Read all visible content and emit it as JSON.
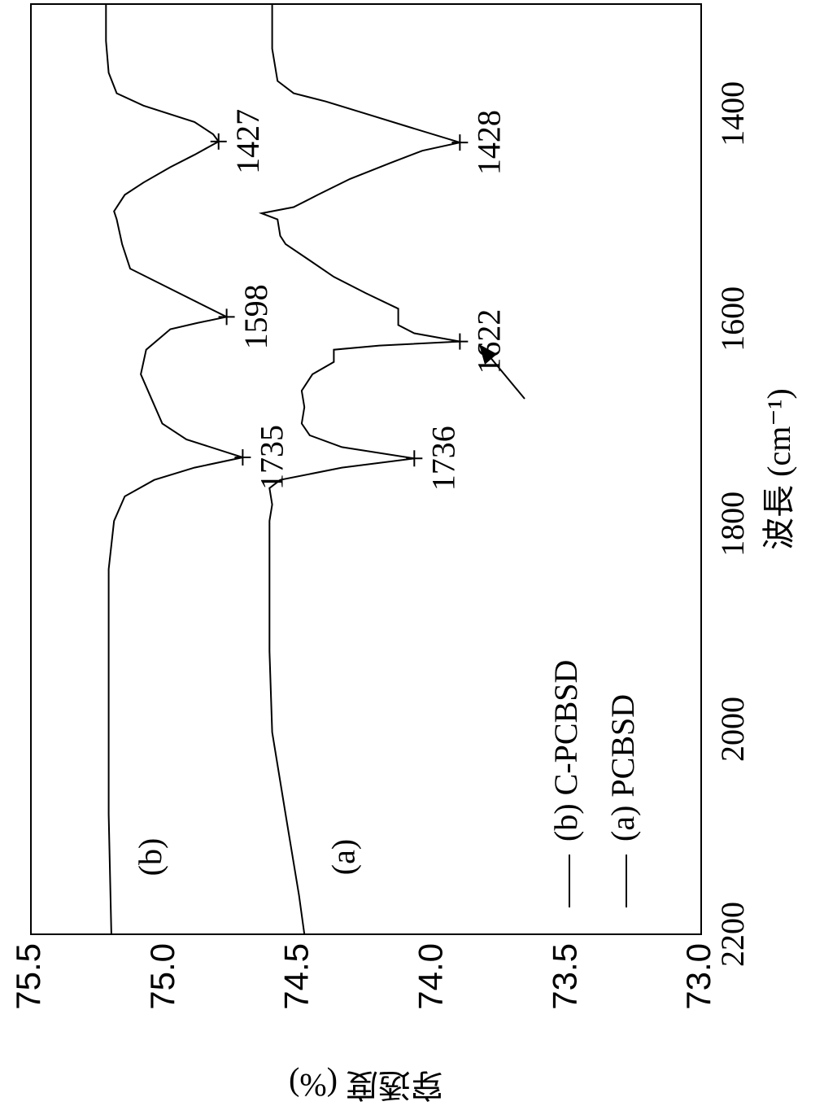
{
  "chart_data": {
    "type": "line",
    "xlabel": "波長 (cm⁻¹)",
    "ylabel": "穿透度 (%)",
    "xlim": [
      2200,
      1293
    ],
    "ylim": [
      73.0,
      75.5
    ],
    "xticks": [
      2200,
      2000,
      1800,
      1600,
      1400
    ],
    "yticks": [
      {
        "value": 73.0,
        "label": "73.0"
      },
      73.5,
      {
        "value": 74.0,
        "label": "74.0"
      },
      74.5,
      {
        "value": 75.0,
        "label": "75.0"
      },
      75.5
    ],
    "legend": "lower left",
    "series": [
      {
        "name": "(b) C-PCBSD",
        "label": "(b)",
        "color": "#000000",
        "x": [
          2200,
          2083,
          1844,
          1797,
          1773,
          1757,
          1745,
          1735,
          1717.5,
          1702,
          1678,
          1654,
          1630,
          1610,
          1604,
          1598,
          1551,
          1527,
          1503,
          1495,
          1479,
          1467,
          1452,
          1440,
          1427,
          1420,
          1408,
          1392,
          1380,
          1360,
          1329,
          1293
        ],
        "values": [
          75.2,
          75.21,
          75.21,
          75.19,
          75.15,
          75.04,
          74.89,
          74.71,
          74.92,
          75.01,
          75.05,
          75.09,
          75.07,
          74.98,
          74.88,
          74.77,
          75.13,
          75.16,
          75.18,
          75.19,
          75.15,
          75.08,
          74.98,
          74.89,
          74.8,
          74.82,
          74.89,
          75.08,
          75.18,
          75.21,
          75.22,
          75.22
        ]
      },
      {
        "name": "(a) PCBSD",
        "label": "(a)",
        "color": "#000000",
        "x": [
          2200,
          2162,
          2083,
          2003,
          1924,
          1844,
          1797,
          1781,
          1765,
          1757,
          1745,
          1736,
          1725,
          1713.5,
          1702,
          1686,
          1670,
          1654,
          1642,
          1630,
          1626,
          1622,
          1614,
          1606,
          1598,
          1590,
          1575,
          1559,
          1543,
          1527,
          1519,
          1503,
          1497,
          1491,
          1479,
          1463.5,
          1448,
          1436,
          1428,
          1412,
          1400,
          1388,
          1380,
          1368,
          1336.5,
          1293
        ],
        "values": [
          74.48,
          74.5,
          74.55,
          74.6,
          74.61,
          74.61,
          74.61,
          74.6,
          74.61,
          74.57,
          74.34,
          74.07,
          74.34,
          74.46,
          74.49,
          74.48,
          74.49,
          74.45,
          74.37,
          74.37,
          74.2,
          73.9,
          74.07,
          74.13,
          74.13,
          74.13,
          74.25,
          74.37,
          74.46,
          74.55,
          74.57,
          74.58,
          74.64,
          74.52,
          74.43,
          74.31,
          74.16,
          74.04,
          73.9,
          74.1,
          74.25,
          74.4,
          74.52,
          74.58,
          74.6,
          74.6
        ]
      }
    ],
    "annotations": [
      {
        "text": "1735",
        "x": 1735,
        "y": 74.71
      },
      {
        "text": "1598",
        "x": 1598,
        "y": 74.77
      },
      {
        "text": "1427",
        "x": 1427,
        "y": 74.8
      },
      {
        "text": "1736",
        "x": 1736,
        "y": 74.07
      },
      {
        "text": "1622",
        "x": 1622,
        "y": 73.9
      },
      {
        "text": "1428",
        "x": 1428,
        "y": 73.9
      }
    ]
  }
}
